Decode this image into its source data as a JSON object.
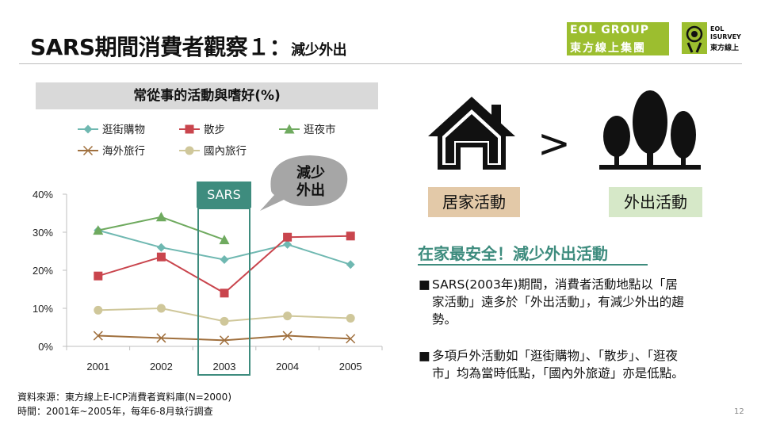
{
  "slide": {
    "title_main": "SARS期間消費者觀察１：",
    "title_sub": "減少外出",
    "logo_eol_line1": "EOL GROUP",
    "logo_eol_line2": "東方線上集團",
    "logo_survey_line1": "EOL",
    "logo_survey_line2": "ISURVEY",
    "logo_survey_line3": "東方線上",
    "page_number": "12"
  },
  "chart_box": {
    "title": "常從事的活動與嗜好(%)"
  },
  "sars_label": "SARS",
  "callout": {
    "line1": "減少",
    "line2": "外出"
  },
  "compare": {
    "home_label": "居家活動",
    "out_label": "外出活動",
    "symbol": ">",
    "home_icon": "house-icon",
    "out_icon": "trees-icon"
  },
  "headline": "在家最安全！減少外出活動",
  "bullets": [
    {
      "marker": "■",
      "text": "SARS(2003年)期間，消費者活動地點以「居家活動」遠多於「外出活動」，有減少外出的趨勢。"
    },
    {
      "marker": "■",
      "text": "多項戶外活動如「逛街購物」、「散步」、「逛夜市」均為當時低點，「國內外旅遊」亦是低點。"
    }
  ],
  "source": {
    "line1": "資料來源：東方線上E-ICP消費者資料庫(N=2000)",
    "line2": "時間：2001年~2005年，每年6-8月執行調查"
  },
  "chart_data": {
    "type": "line",
    "title": "常從事的活動與嗜好(%)",
    "categories": [
      "2001",
      "2002",
      "2003",
      "2004",
      "2005"
    ],
    "ylim": [
      0,
      40
    ],
    "yticks": [
      "0%",
      "10%",
      "20%",
      "30%",
      "40%"
    ],
    "grid": false,
    "legend_position": "top",
    "series": [
      {
        "name": "逛街購物",
        "color": "#6fb8b1",
        "marker": "diamond",
        "values": [
          30.5,
          26,
          22.8,
          26.8,
          21.5
        ]
      },
      {
        "name": "散步",
        "color": "#c9454d",
        "marker": "square",
        "values": [
          18.5,
          23.5,
          14,
          28.7,
          29
        ]
      },
      {
        "name": "逛夜市",
        "color": "#6faa5f",
        "marker": "triangle",
        "values": [
          30.5,
          34,
          28,
          null,
          null
        ]
      },
      {
        "name": "海外旅行",
        "color": "#a0703e",
        "marker": "x",
        "values": [
          2.8,
          2.2,
          1.6,
          2.8,
          2.0
        ]
      },
      {
        "name": "國內旅行",
        "color": "#cfc79a",
        "marker": "circle",
        "values": [
          9.5,
          10,
          6.6,
          8,
          7.4
        ]
      }
    ]
  }
}
